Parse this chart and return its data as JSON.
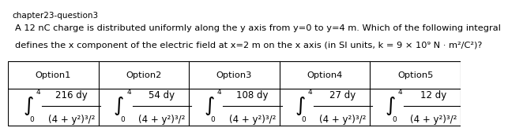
{
  "title_line1": "chapter23-question3",
  "question_line1": "A 12 nC charge is distributed uniformly along the y axis from y=0 to y=4 m. Which of the following integral",
  "question_line2": "defines the x component of the electric field at x=2 m on the x axis (in SI units, k = 9 × 10⁹ N · m²/C²)?",
  "headers": [
    "Option1",
    "Option2",
    "Option3",
    "Option4",
    "Option5"
  ],
  "numerators": [
    "216 dy",
    "54 dy",
    "108 dy",
    "27 dy",
    "12 dy"
  ],
  "denominators": [
    "(4 + y²)³/²",
    "(4 + y²)³/²",
    "(4 + y²)³/²",
    "(4 + y²)³/²",
    "(4 + y²)³/²"
  ],
  "bg_color": "#ffffff",
  "text_color": "#000000",
  "grid_color": "#000000",
  "title_fontsize": 7.5,
  "question_fontsize": 8.2,
  "header_fontsize": 8.2,
  "content_fontsize": 8.5,
  "small_fontsize": 6.5,
  "integral_fontsize": 13
}
